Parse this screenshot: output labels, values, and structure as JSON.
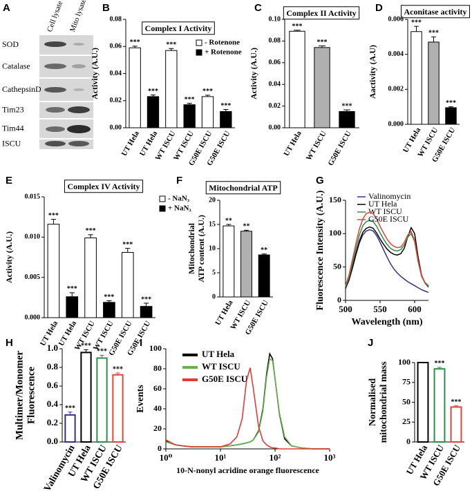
{
  "blot": {
    "panel": "A",
    "columns": [
      "Cell lysate",
      "Mito lysate"
    ],
    "rows": [
      "SOD",
      "Catalase",
      "CathepsinD",
      "Tim23",
      "Tim44",
      "ISCU"
    ]
  },
  "chart_data": [
    {
      "type": "bar",
      "panel": "B",
      "title": "Complex I Activity",
      "ylabel": [
        "Activity (A.U.)"
      ],
      "categories": [
        "UT Hela",
        "WT ISCU",
        "G50E ISCU"
      ],
      "series": [
        {
          "name": "- Rotenone",
          "color": "#ffffff",
          "values": [
            0.059,
            0.057,
            0.023
          ],
          "errors": [
            0.0012,
            0.0015,
            0.001
          ],
          "significance": [
            "***",
            "***",
            "***"
          ]
        },
        {
          "name": "+ Rotenone",
          "color": "#000000",
          "values": [
            0.023,
            0.017,
            0.012
          ],
          "errors": [
            0.0012,
            0.001,
            0.0015
          ],
          "significance": [
            "***",
            "***",
            "***"
          ]
        }
      ],
      "ylim": [
        0,
        0.08
      ],
      "yticks": [
        {
          "value": 0,
          "label": "0.00"
        },
        0.02,
        0.04,
        0.06,
        0.08
      ]
    },
    {
      "type": "bar",
      "panel": "C",
      "title": "Complex II Activity",
      "ylabel": [
        "Activity (A.U.)"
      ],
      "categories": [
        "UT Hela",
        "WT ISCU",
        "G50E ISCU"
      ],
      "series": [
        {
          "colors": [
            "#ffffff",
            "#b0b0b0",
            "#000000"
          ],
          "values": [
            0.089,
            0.074,
            0.015
          ],
          "errors": [
            0.001,
            0.0015,
            0.0015
          ],
          "significance": [
            "***",
            "***",
            "***"
          ]
        }
      ],
      "ylim": [
        0,
        0.1
      ],
      "yticks": [
        {
          "value": 0,
          "label": "0.00"
        },
        0.02,
        0.04,
        0.06,
        0.08,
        {
          "value": 0.1,
          "label": "0.10"
        }
      ]
    },
    {
      "type": "bar",
      "panel": "D",
      "title": "Aconitase activity",
      "ylabel": [
        "Aactivity (A.U)"
      ],
      "categories": [
        "UT Hela",
        "WT ISCU",
        "G50E ISCU"
      ],
      "series": [
        {
          "colors": [
            "#ffffff",
            "#b0b0b0",
            "#000000"
          ],
          "values": [
            0.0053,
            0.0047,
            0.00095
          ],
          "errors": [
            0.0003,
            0.0003,
            5e-05
          ],
          "significance": [
            "***",
            "***",
            "***"
          ]
        }
      ],
      "ylim": [
        0,
        0.006
      ],
      "yticks": [
        {
          "value": 0,
          "label": "0.000"
        },
        0.002,
        0.004,
        0.006
      ]
    },
    {
      "type": "bar",
      "panel": "E",
      "title": "Complex IV Activity",
      "ylabel": [
        "Activity (A.U.)"
      ],
      "categories": [
        "UT Hela",
        "WT ISCU",
        "G50E ISCU"
      ],
      "series": [
        {
          "name": "- NaN₃",
          "color": "#ffffff",
          "values": [
            0.0116,
            0.0099,
            0.0081
          ],
          "errors": [
            0.0006,
            0.0004,
            0.0005
          ],
          "significance": [
            "***",
            "***",
            "***"
          ]
        },
        {
          "name": "+ NaN₃",
          "color": "#000000",
          "values": [
            0.0026,
            0.0019,
            0.0014
          ],
          "errors": [
            0.0005,
            0.0002,
            0.0004
          ],
          "significance": [
            "***",
            "***",
            "***"
          ]
        }
      ],
      "ylim": [
        0,
        0.015
      ],
      "yticks": [
        {
          "value": 0,
          "label": "0.000"
        },
        0.005,
        {
          "value": 0.01,
          "label": "0.010"
        },
        0.015
      ]
    },
    {
      "type": "bar",
      "panel": "F",
      "title": "Mitochondrial ATP",
      "ylabel": [
        "Mitochondrial",
        "ATP content (A.U.)"
      ],
      "categories": [
        "UT Hela",
        "WT ISCU",
        "G50E ISCU"
      ],
      "series": [
        {
          "colors": [
            "#ffffff",
            "#b0b0b0",
            "#000000"
          ],
          "values": [
            14.7,
            13.6,
            8.7
          ],
          "errors": [
            0.3,
            0.2,
            0.2
          ],
          "significance": [
            "**",
            "**",
            "**"
          ]
        }
      ],
      "ylim": [
        0,
        20
      ],
      "yticks": [
        0,
        5,
        10,
        15,
        20
      ]
    },
    {
      "type": "line",
      "panel": "G",
      "ylabel": [
        "Fluorescence Intensity (A.U.)"
      ],
      "xlabel": "Wavelength (nm)",
      "x": [
        500,
        505,
        510,
        515,
        520,
        525,
        530,
        535,
        540,
        545,
        550,
        555,
        560,
        565,
        570,
        575,
        580,
        585,
        590,
        595,
        600,
        605,
        610,
        615,
        620
      ],
      "series": [
        {
          "name": "Valinomycin",
          "color": "#3b2c8c",
          "values": [
            18,
            30,
            48,
            68,
            86,
            98,
            104,
            106,
            104,
            97,
            87,
            76,
            65,
            55,
            47,
            41,
            36,
            32,
            28,
            25,
            22,
            19,
            16,
            14,
            12
          ]
        },
        {
          "name": "UT Hela",
          "color": "#000000",
          "values": [
            18,
            31,
            50,
            70,
            89,
            102,
            108,
            110,
            108,
            101,
            92,
            84,
            77,
            72,
            69,
            68,
            70,
            78,
            95,
            109,
            100,
            65,
            38,
            26,
            20
          ]
        },
        {
          "name": "WT ISCU",
          "color": "#2a8f4a",
          "values": [
            20,
            34,
            55,
            77,
            98,
            112,
            118,
            120,
            118,
            111,
            101,
            92,
            84,
            78,
            75,
            74,
            76,
            83,
            95,
            100,
            88,
            58,
            36,
            26,
            21
          ]
        },
        {
          "name": "G50E ISCU",
          "color": "#e0443a",
          "values": [
            22,
            38,
            61,
            85,
            107,
            122,
            130,
            132,
            130,
            122,
            111,
            101,
            92,
            85,
            81,
            79,
            80,
            87,
            98,
            103,
            90,
            60,
            37,
            27,
            22
          ]
        }
      ],
      "xlim": [
        500,
        620
      ],
      "xticks": [
        500,
        550,
        600
      ],
      "ylim": [
        0,
        150
      ],
      "yticks": [
        0,
        50,
        100,
        150
      ]
    },
    {
      "type": "bar",
      "panel": "H",
      "bar_style": "outline",
      "ylabel": [
        "Multimer/Monomer",
        "Fluorescence"
      ],
      "categories": [
        "Valinomycin",
        "UT Hela",
        "WT ISCU",
        "G50E ISCU"
      ],
      "series": [
        {
          "colors": [
            "#3b2c8c",
            "#000000",
            "#2a8f4a",
            "#e0443a"
          ],
          "values": [
            0.29,
            0.96,
            0.9,
            0.72
          ],
          "errors": [
            0.03,
            0.03,
            0.03,
            0.02
          ],
          "significance": [
            "***",
            "***",
            "***",
            "***"
          ]
        }
      ],
      "ylim": [
        0,
        1.0
      ],
      "yticks": [
        {
          "value": 0,
          "label": "0.0"
        },
        0.2,
        0.4,
        0.6,
        0.8,
        {
          "value": 1.0,
          "label": "1.0"
        }
      ]
    },
    {
      "type": "line",
      "panel": "I",
      "xscale": "log",
      "ylabel": [
        "Events"
      ],
      "xlabel": "10-N-nonyl acridine orange fluorescence",
      "x": [
        1,
        1.5,
        2,
        3,
        5,
        7,
        10,
        15,
        20,
        25,
        30,
        35,
        40,
        50,
        60,
        70,
        80,
        90,
        100,
        120,
        150,
        200,
        300,
        500,
        1000
      ],
      "series": [
        {
          "name": "UT Hela",
          "color": "#000000",
          "values": [
            8,
            4,
            3,
            2,
            2,
            2,
            2,
            3,
            4,
            5,
            6,
            7,
            9,
            18,
            40,
            75,
            95,
            90,
            70,
            35,
            10,
            3,
            1,
            0,
            0
          ]
        },
        {
          "name": "WT ISCU",
          "color": "#6ab04c",
          "values": [
            7,
            4,
            3,
            2,
            2,
            2,
            2,
            3,
            4,
            5,
            6,
            7,
            9,
            17,
            38,
            72,
            90,
            88,
            70,
            36,
            12,
            3,
            1,
            0,
            0
          ]
        },
        {
          "name": "G50E ISCU",
          "color": "#e53935",
          "values": [
            9,
            4,
            3,
            2,
            2,
            2,
            2,
            5,
            12,
            30,
            68,
            81,
            60,
            22,
            8,
            4,
            2,
            1,
            1,
            0,
            0,
            0,
            0,
            0,
            0
          ]
        }
      ],
      "xlim": [
        1,
        1000
      ],
      "xticks": [
        {
          "value": 1,
          "label": "10⁰"
        },
        {
          "value": 10,
          "label": "10¹"
        },
        {
          "value": 100,
          "label": "10²"
        },
        {
          "value": 1000,
          "label": "10³"
        }
      ],
      "ylim": [
        0,
        100
      ],
      "yticks": [
        0,
        20,
        40,
        60,
        80,
        100
      ]
    },
    {
      "type": "bar",
      "panel": "J",
      "bar_style": "outline",
      "ylabel": [
        "Normalised",
        "mitochondrial mass"
      ],
      "categories": [
        "UT Hela",
        "WT ISCU",
        "G50E ISCU"
      ],
      "series": [
        {
          "colors": [
            "#000000",
            "#2a8f4a",
            "#e0443a"
          ],
          "values": [
            100,
            92,
            44
          ],
          "errors": [
            0,
            2,
            1.5
          ],
          "significance": [
            null,
            "***",
            "***"
          ]
        }
      ],
      "ylim": [
        0,
        100
      ],
      "yticks": [
        0,
        25,
        50,
        75,
        100
      ]
    }
  ]
}
